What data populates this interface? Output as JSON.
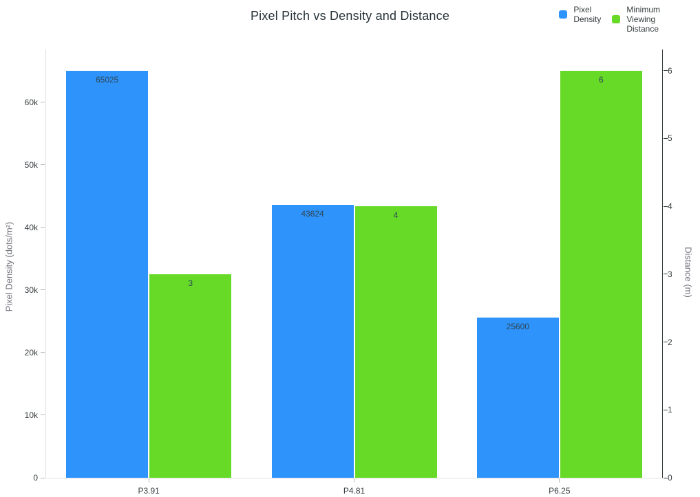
{
  "title": "Pixel Pitch vs Density and Distance",
  "legend": [
    {
      "label": "Pixel Density",
      "lines": [
        "Pixel",
        "Density"
      ],
      "color": "#2E93FA"
    },
    {
      "label": "Minimum Viewing Distance",
      "lines": [
        "Minimum",
        "Viewing",
        "Distance"
      ],
      "color": "#66DA26"
    }
  ],
  "chart_data": {
    "type": "bar",
    "title": "Pixel Pitch vs Density and Distance",
    "categories": [
      "P3.91",
      "P4.81",
      "P6.25"
    ],
    "series": [
      {
        "name": "Pixel Density",
        "axis": "left",
        "color": "#2E93FA",
        "values": [
          65025,
          43624,
          25600
        ]
      },
      {
        "name": "Minimum Viewing Distance",
        "axis": "right",
        "color": "#66DA26",
        "values": [
          3,
          4,
          6
        ]
      }
    ],
    "data_labels": [
      "65025",
      "43624",
      "25600",
      "3",
      "4",
      "6"
    ],
    "y_left": {
      "label": "Pixel Density (dots/m²)",
      "ticks": [
        "0",
        "10k",
        "20k",
        "30k",
        "40k",
        "50k",
        "60k"
      ],
      "tick_values": [
        0,
        10000,
        20000,
        30000,
        40000,
        50000,
        60000
      ],
      "range": [
        0,
        68400
      ]
    },
    "y_right": {
      "label": "Distance (m)",
      "ticks": [
        "0",
        "1",
        "2",
        "3",
        "4",
        "5",
        "6"
      ],
      "tick_values": [
        0,
        1,
        2,
        3,
        4,
        5,
        6
      ],
      "range": [
        0,
        6.31
      ]
    },
    "grid": false,
    "legend_position": "top-right"
  }
}
